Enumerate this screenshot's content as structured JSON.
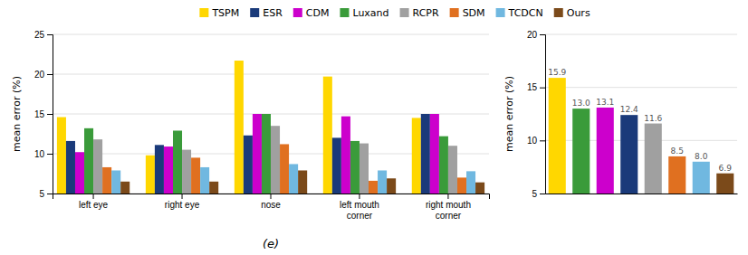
{
  "chart_data": [
    {
      "type": "bar",
      "xlabel": "(e)",
      "ylabel": "mean error (%)",
      "categories": [
        "left eye",
        "right eye",
        "nose",
        "left mouth\ncorner",
        "right mouth\ncorner"
      ],
      "series": [
        {
          "name": "TSPM",
          "color": "#FFD700",
          "values": [
            14.6,
            9.8,
            21.7,
            19.7,
            14.5
          ]
        },
        {
          "name": "ESR",
          "color": "#1A3A7A",
          "values": [
            11.6,
            11.1,
            12.3,
            12.0,
            15.0
          ]
        },
        {
          "name": "CDM",
          "color": "#CC00CC",
          "values": [
            10.2,
            10.9,
            15.0,
            14.7,
            15.0
          ]
        },
        {
          "name": "Luxand",
          "color": "#3A9B3A",
          "values": [
            13.2,
            12.9,
            15.0,
            11.6,
            12.2
          ]
        },
        {
          "name": "RCPR",
          "color": "#A0A0A0",
          "values": [
            11.8,
            10.5,
            13.5,
            11.3,
            11.0
          ]
        },
        {
          "name": "SDM",
          "color": "#E07020",
          "values": [
            8.3,
            9.5,
            11.2,
            6.6,
            7.0
          ]
        },
        {
          "name": "TCDCN",
          "color": "#70B8E0",
          "values": [
            7.9,
            8.3,
            8.7,
            7.9,
            7.8
          ]
        },
        {
          "name": "Ours",
          "color": "#7B4A1A",
          "values": [
            6.5,
            6.5,
            7.9,
            6.9,
            6.4
          ]
        }
      ],
      "ylim": [
        5,
        25
      ],
      "yticks": [
        5,
        10,
        15,
        20,
        25
      ],
      "grid": true,
      "legend": "top"
    },
    {
      "type": "bar",
      "ylabel": "mean error (%)",
      "categories": [
        null,
        null,
        null,
        null,
        null,
        null,
        null,
        null
      ],
      "values": [
        15.9,
        13.0,
        13.1,
        12.4,
        11.6,
        8.5,
        8.0,
        6.9
      ],
      "value_labels": [
        "15.9",
        "13.0",
        "13.1",
        "12.4",
        "11.6",
        "8.5",
        "8.0",
        "6.9"
      ],
      "colors": [
        "#FFD700",
        "#3A9B3A",
        "#CC00CC",
        "#1A3A7A",
        "#A0A0A0",
        "#E07020",
        "#70B8E0",
        "#7B4A1A"
      ],
      "ylim": [
        5,
        20
      ],
      "yticks": [
        5,
        10,
        15,
        20
      ],
      "grid": true,
      "data_labels": true,
      "tick_labels": "y"
    }
  ]
}
